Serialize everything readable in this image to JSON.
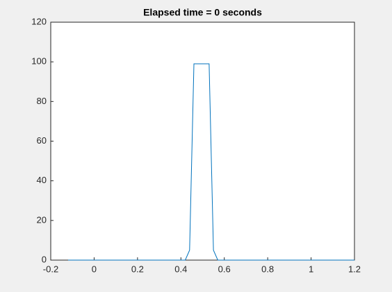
{
  "chart_data": {
    "type": "line",
    "title": "Elapsed time = 0 seconds",
    "x": [
      -0.12,
      0.42,
      0.44,
      0.46,
      0.53,
      0.55,
      0.57,
      1.2
    ],
    "series": [
      {
        "color": "#0072bd",
        "values": [
          0,
          0,
          5,
          99,
          99,
          5,
          0,
          0
        ]
      }
    ],
    "xlim": [
      -0.2,
      1.2
    ],
    "xticks": [
      -0.2,
      0,
      0.2,
      0.4,
      0.6,
      0.8,
      1,
      1.2
    ],
    "ylim": [
      0,
      120
    ],
    "yticks": [
      0,
      20,
      40,
      60,
      80,
      100,
      120
    ],
    "grid": false
  }
}
